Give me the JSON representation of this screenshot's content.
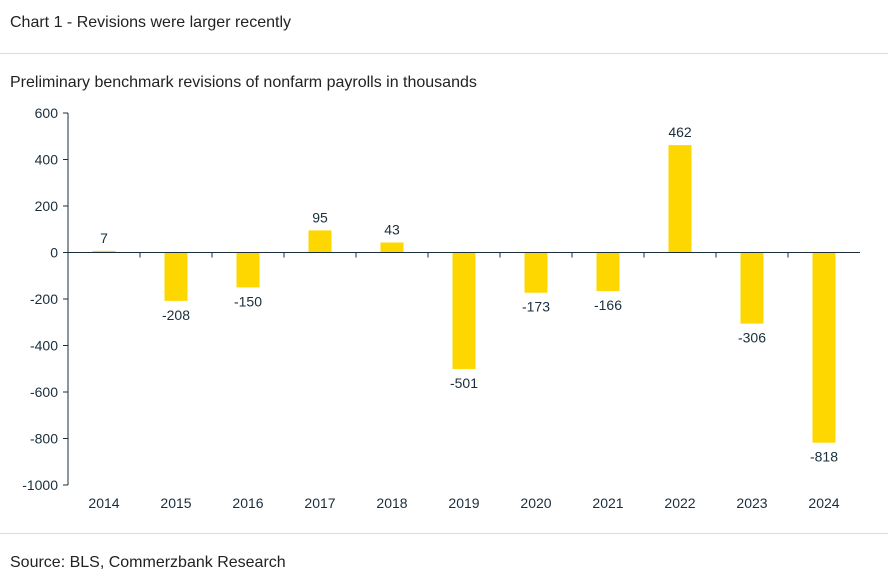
{
  "header": {
    "title": "Chart 1 - Revisions were larger recently"
  },
  "footer": {
    "source": "Source: BLS, Commerzbank Research"
  },
  "colors": {
    "bar": "#FFD700",
    "axis": "#1a2e3b",
    "text": "#1a2e3b"
  },
  "chart_data": {
    "type": "bar",
    "title": "Preliminary benchmark revisions of nonfarm payrolls in thousands",
    "xlabel": "",
    "ylabel": "",
    "categories": [
      "2014",
      "2015",
      "2016",
      "2017",
      "2018",
      "2019",
      "2020",
      "2021",
      "2022",
      "2023",
      "2024"
    ],
    "values": [
      7,
      -208,
      -150,
      95,
      43,
      -501,
      -173,
      -166,
      462,
      -306,
      -818
    ],
    "ylim": [
      -1000,
      600
    ],
    "yticks": [
      600,
      400,
      200,
      0,
      -200,
      -400,
      -600,
      -800,
      -1000
    ],
    "grid": false,
    "legend": "none",
    "data_labels": true
  }
}
